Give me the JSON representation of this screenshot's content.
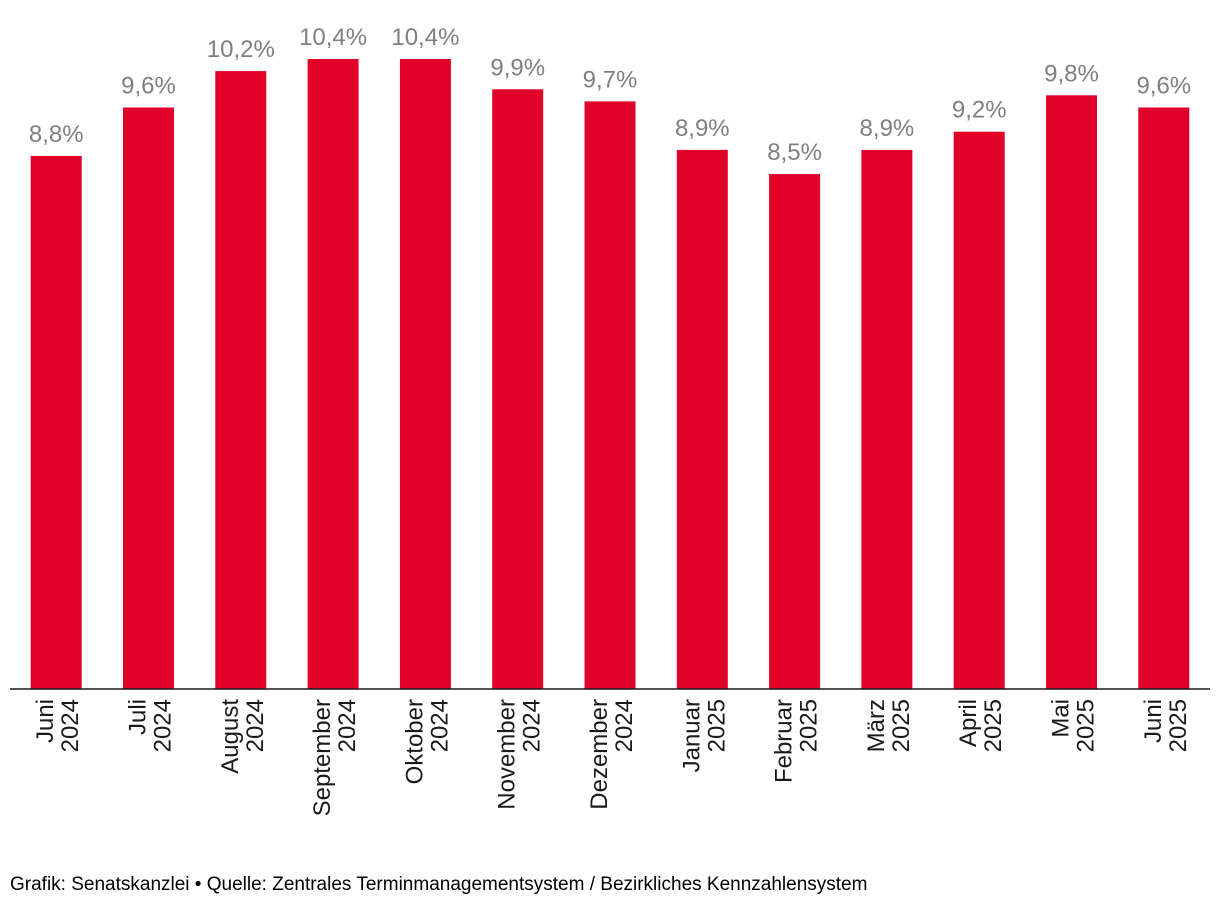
{
  "chart_data": {
    "type": "bar",
    "categories": [
      [
        "Juni",
        "2024"
      ],
      [
        "Juli",
        "2024"
      ],
      [
        "August",
        "2024"
      ],
      [
        "September",
        "2024"
      ],
      [
        "Oktober",
        "2024"
      ],
      [
        "November",
        "2024"
      ],
      [
        "Dezember",
        "2024"
      ],
      [
        "Januar",
        "2025"
      ],
      [
        "Februar",
        "2025"
      ],
      [
        "März",
        "2025"
      ],
      [
        "April",
        "2025"
      ],
      [
        "Mai",
        "2025"
      ],
      [
        "Juni",
        "2025"
      ]
    ],
    "values": [
      8.8,
      9.6,
      10.2,
      10.4,
      10.4,
      9.9,
      9.7,
      8.9,
      8.5,
      8.9,
      9.2,
      9.8,
      9.6
    ],
    "data_labels": [
      "8,8%",
      "9,6%",
      "10,2%",
      "10,4%",
      "10,4%",
      "9,9%",
      "9,7%",
      "8,9%",
      "8,5%",
      "8,9%",
      "9,2%",
      "9,8%",
      "9,6%"
    ],
    "ylim": [
      0,
      10.4
    ],
    "grid": false,
    "y_axis_visible": false,
    "bar_color": "#e10028",
    "label_color": "#7f7f7f"
  },
  "footer": {
    "source": "Grafik: Senatskanzlei • Quelle: Zentrales Terminmanagementsystem / Bezirkliches Kennzahlensystem"
  }
}
